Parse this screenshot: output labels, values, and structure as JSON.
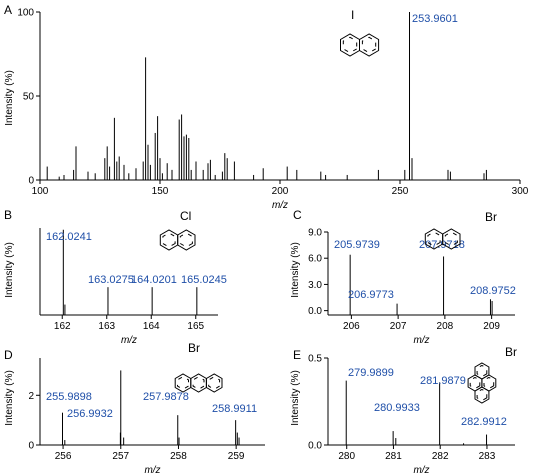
{
  "panels": [
    {
      "id": "A",
      "label": "A",
      "ylabel": "Intensity (%)",
      "xlabel": "m/z",
      "xlim": [
        100,
        300
      ],
      "ylim": [
        0,
        100
      ],
      "xticks": [
        "100",
        "150",
        "200",
        "250",
        "300"
      ],
      "yticks": [
        "0",
        "50",
        "100"
      ],
      "molecule": "1-iodonaphthalene",
      "halogen": "I",
      "peak_labels": [
        "253.9601"
      ],
      "chart_data": {
        "type": "bar",
        "x": [
          103.0,
          108.0,
          110.0,
          114.0,
          115.0,
          120.0,
          123.0,
          127.0,
          128.0,
          129.0,
          131.0,
          132.0,
          133.0,
          135.0,
          137.0,
          140.0,
          143.0,
          144.0,
          145.0,
          146.0,
          148.0,
          149.0,
          150.0,
          151.0,
          153.0,
          155.0,
          158.0,
          159.0,
          160.0,
          161.0,
          162.0,
          163.0,
          165.0,
          168.0,
          170.0,
          171.0,
          173.0,
          176.0,
          177.0,
          178.0,
          181.0,
          189.0,
          193.0,
          203.0,
          207.0,
          217.0,
          219.0,
          228.0,
          241.0,
          252.0,
          253.96,
          255.0,
          270.0,
          271.0,
          285.0,
          286.0
        ],
        "y": [
          8,
          2,
          3,
          6,
          20,
          5,
          4,
          13,
          20,
          8,
          37,
          11,
          14,
          9,
          4,
          7,
          11,
          73,
          21,
          9,
          28,
          38,
          13,
          4,
          10,
          6,
          36,
          39,
          26,
          27,
          25,
          6,
          11,
          6,
          10,
          12,
          3,
          5,
          16,
          13,
          11,
          3,
          7,
          8,
          6,
          5,
          3,
          3,
          6,
          6,
          100,
          13,
          6,
          5,
          4,
          6
        ]
      }
    },
    {
      "id": "B",
      "label": "B",
      "ylabel": "Intensity (%)",
      "xlabel": "m/z",
      "xlim": [
        161.5,
        165.5
      ],
      "ylim": [
        0,
        25
      ],
      "xticks": [
        "162",
        "163",
        "164",
        "165"
      ],
      "yticks": [],
      "molecule": "1-chloronaphthalene",
      "halogen": "Cl",
      "peak_labels": [
        "162.0241",
        "163.0275",
        "164.0201",
        "165.0245"
      ],
      "chart_data": {
        "type": "bar",
        "x": [
          162.0241,
          162.06,
          163.0275,
          164.0201,
          165.0245
        ],
        "y": [
          24.5,
          3,
          8,
          8,
          8
        ]
      }
    },
    {
      "id": "C",
      "label": "C",
      "ylabel": "Intensity (%)",
      "xlabel": "m/z",
      "xlim": [
        205.5,
        209.5
      ],
      "ylim": [
        -0.5,
        9.0
      ],
      "xticks": [
        "206",
        "207",
        "208",
        "209"
      ],
      "yticks": [
        "0.0",
        "3.0",
        "6.0",
        "9.0"
      ],
      "molecule": "1-bromonaphthalene",
      "halogen": "Br",
      "peak_labels": [
        "205.9739",
        "206.9773",
        "207.9718",
        "208.9752"
      ],
      "chart_data": {
        "type": "bar",
        "x": [
          205.9739,
          206.9773,
          207.9718,
          208.9752,
          209.01
        ],
        "y": [
          6.4,
          0.8,
          6.2,
          1.3,
          1.1
        ]
      }
    },
    {
      "id": "D",
      "label": "D",
      "ylabel": "Intensity (%)",
      "xlabel": "m/z",
      "xlim": [
        255.6,
        259.5
      ],
      "ylim": [
        0,
        3.5
      ],
      "xticks": [
        "256",
        "257",
        "258",
        "259"
      ],
      "yticks": [
        "0",
        "2"
      ],
      "molecule": "9-bromoanthracene",
      "halogen": "Br",
      "peak_labels": [
        "255.9898",
        "256.9932",
        "257.9878",
        "258.9911"
      ],
      "chart_data": {
        "type": "bar",
        "x": [
          255.9898,
          256.03,
          256.9932,
          257.0,
          257.05,
          257.9878,
          258.01,
          258.9911,
          259.02,
          259.05
        ],
        "y": [
          1.3,
          0.2,
          0.5,
          3.0,
          0.3,
          1.2,
          0.3,
          1.0,
          0.5,
          0.3
        ]
      }
    },
    {
      "id": "E",
      "label": "E",
      "ylabel": "Intensity (%)",
      "xlabel": "m/z",
      "xlim": [
        279.6,
        283.6
      ],
      "ylim": [
        0,
        0.5
      ],
      "xticks": [
        "280",
        "281",
        "282",
        "283"
      ],
      "yticks": [
        "0.0",
        "0.5"
      ],
      "molecule": "1-bromopyrene",
      "halogen": "Br",
      "peak_labels": [
        "279.9899",
        "280.9933",
        "281.9879",
        "282.9912"
      ],
      "chart_data": {
        "type": "bar",
        "x": [
          279.9899,
          280.9933,
          281.05,
          281.9879,
          282.5,
          282.9912
        ],
        "y": [
          0.37,
          0.08,
          0.04,
          0.36,
          0.01,
          0.06
        ]
      }
    }
  ]
}
